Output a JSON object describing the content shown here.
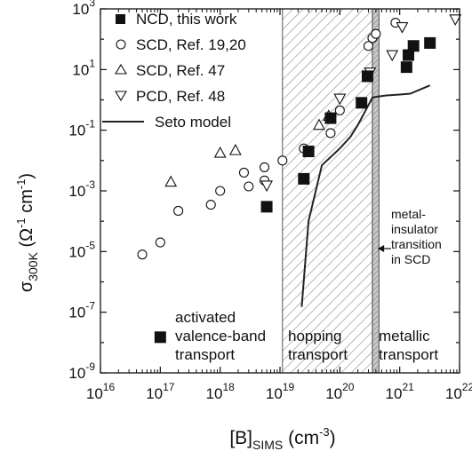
{
  "chart_data": {
    "type": "scatter",
    "x_scale": "log",
    "y_scale": "log",
    "xlim": [
      1e+16,
      1e+22
    ],
    "ylim": [
      1e-09,
      1000.0
    ],
    "x_tick_values": [
      1e+16,
      1e+17,
      1e+18,
      1e+19,
      1e+20,
      1e+21,
      1e+22
    ],
    "y_tick_values": [
      1e-09,
      1e-07,
      1e-05,
      0.001,
      0.1,
      10.0,
      1000.0
    ],
    "x_tick_labels": [
      {
        "base": "10",
        "exp": "16"
      },
      {
        "base": "10",
        "exp": "17"
      },
      {
        "base": "10",
        "exp": "18"
      },
      {
        "base": "10",
        "exp": "19"
      },
      {
        "base": "10",
        "exp": "20"
      },
      {
        "base": "10",
        "exp": "21"
      },
      {
        "base": "10",
        "exp": "22"
      }
    ],
    "y_tick_labels": [
      {
        "base": "10",
        "exp": "-9"
      },
      {
        "base": "10",
        "exp": "-7"
      },
      {
        "base": "10",
        "exp": "-5"
      },
      {
        "base": "10",
        "exp": "-3"
      },
      {
        "base": "10",
        "exp": "-1"
      },
      {
        "base": "10",
        "exp": "1"
      },
      {
        "base": "10",
        "exp": "3"
      }
    ],
    "xlabel": {
      "main": "[B]",
      "sub": "SIMS",
      "unit_open": " (cm",
      "unit_exp": "-3",
      "unit_close": ")"
    },
    "ylabel": {
      "main": "σ",
      "sub": "300K",
      "unit_open": " (Ω",
      "unit_exp1": "-1",
      "unit_mid": " cm",
      "unit_exp2": "-1",
      "unit_close": ")"
    },
    "grid": false,
    "legend_position": "top-left",
    "series": [
      {
        "name": "NCD, this work",
        "marker": "filled-square",
        "points": [
          [
            1e+17,
            1.5e-08
          ],
          [
            6e+18,
            0.0003
          ],
          [
            2.5e+19,
            0.0025
          ],
          [
            3e+19,
            0.02
          ],
          [
            7e+19,
            0.25
          ],
          [
            2.3e+20,
            0.8
          ],
          [
            2.9e+20,
            6
          ],
          [
            1.3e+21,
            12
          ],
          [
            1.4e+21,
            30
          ],
          [
            1.7e+21,
            60
          ],
          [
            3.2e+21,
            75
          ]
        ]
      },
      {
        "name": "SCD, Ref. 19,20",
        "marker": "open-circle",
        "points": [
          [
            5e+16,
            8e-06
          ],
          [
            1e+17,
            2e-05
          ],
          [
            2e+17,
            0.00022
          ],
          [
            7e+17,
            0.00035
          ],
          [
            1e+18,
            0.001
          ],
          [
            2.5e+18,
            0.004
          ],
          [
            3e+18,
            0.0014
          ],
          [
            5.5e+18,
            0.006
          ],
          [
            5.5e+18,
            0.0022
          ],
          [
            1.1e+19,
            0.01
          ],
          [
            2.5e+19,
            0.025
          ],
          [
            7e+19,
            0.08
          ],
          [
            1e+20,
            0.45
          ],
          [
            3e+20,
            60
          ],
          [
            3.5e+20,
            110
          ],
          [
            4e+20,
            150
          ],
          [
            8.5e+20,
            350
          ]
        ]
      },
      {
        "name": "SCD, Ref. 47",
        "marker": "open-triangle-up",
        "points": [
          [
            1.5e+17,
            0.002
          ],
          [
            1e+18,
            0.018
          ],
          [
            1.8e+18,
            0.022
          ],
          [
            4.5e+19,
            0.15
          ],
          [
            6.5e+19,
            0.3
          ]
        ]
      },
      {
        "name": "PCD, Ref. 48",
        "marker": "open-triangle-down",
        "points": [
          [
            6e+18,
            0.0015
          ],
          [
            1e+20,
            1.1
          ],
          [
            3.2e+20,
            8
          ],
          [
            7.5e+20,
            30
          ],
          [
            1.1e+21,
            250
          ],
          [
            8.5e+21,
            450
          ]
        ]
      }
    ],
    "line_series": [
      {
        "name": "Seto model",
        "points": [
          [
            2.3e+19,
            1.5e-07
          ],
          [
            3e+19,
            0.0001
          ],
          [
            5e+19,
            0.007
          ],
          [
            1e+20,
            0.025
          ],
          [
            1.5e+20,
            0.06
          ],
          [
            2e+20,
            0.15
          ],
          [
            2.7e+20,
            0.45
          ],
          [
            3.5e+20,
            1.2
          ],
          [
            4.5e+20,
            1.3
          ],
          [
            6e+20,
            1.4
          ],
          [
            1e+21,
            1.5
          ],
          [
            1.5e+21,
            1.6
          ],
          [
            3.2e+21,
            3
          ]
        ]
      }
    ],
    "regions": [
      {
        "label": "hopping transport",
        "x_range": [
          1.1e+19,
          3.5e+20
        ],
        "fill": "hatched"
      },
      {
        "label": "metal-insulator transition in SCD",
        "x_range": [
          3.5e+20,
          4.5e+20
        ],
        "fill": "gray-hatched"
      }
    ],
    "annotations": {
      "activated": [
        "activated",
        "valence-band",
        "transport"
      ],
      "hopping": [
        "hopping",
        "transport"
      ],
      "metallic": [
        "metallic",
        "transport"
      ],
      "mit": [
        "metal-",
        "insulator",
        "transition",
        "in SCD"
      ]
    },
    "colors": {
      "marker": "#111111",
      "hatch": "#8a8a8a",
      "mit_fill": "#c8c8c8"
    }
  }
}
